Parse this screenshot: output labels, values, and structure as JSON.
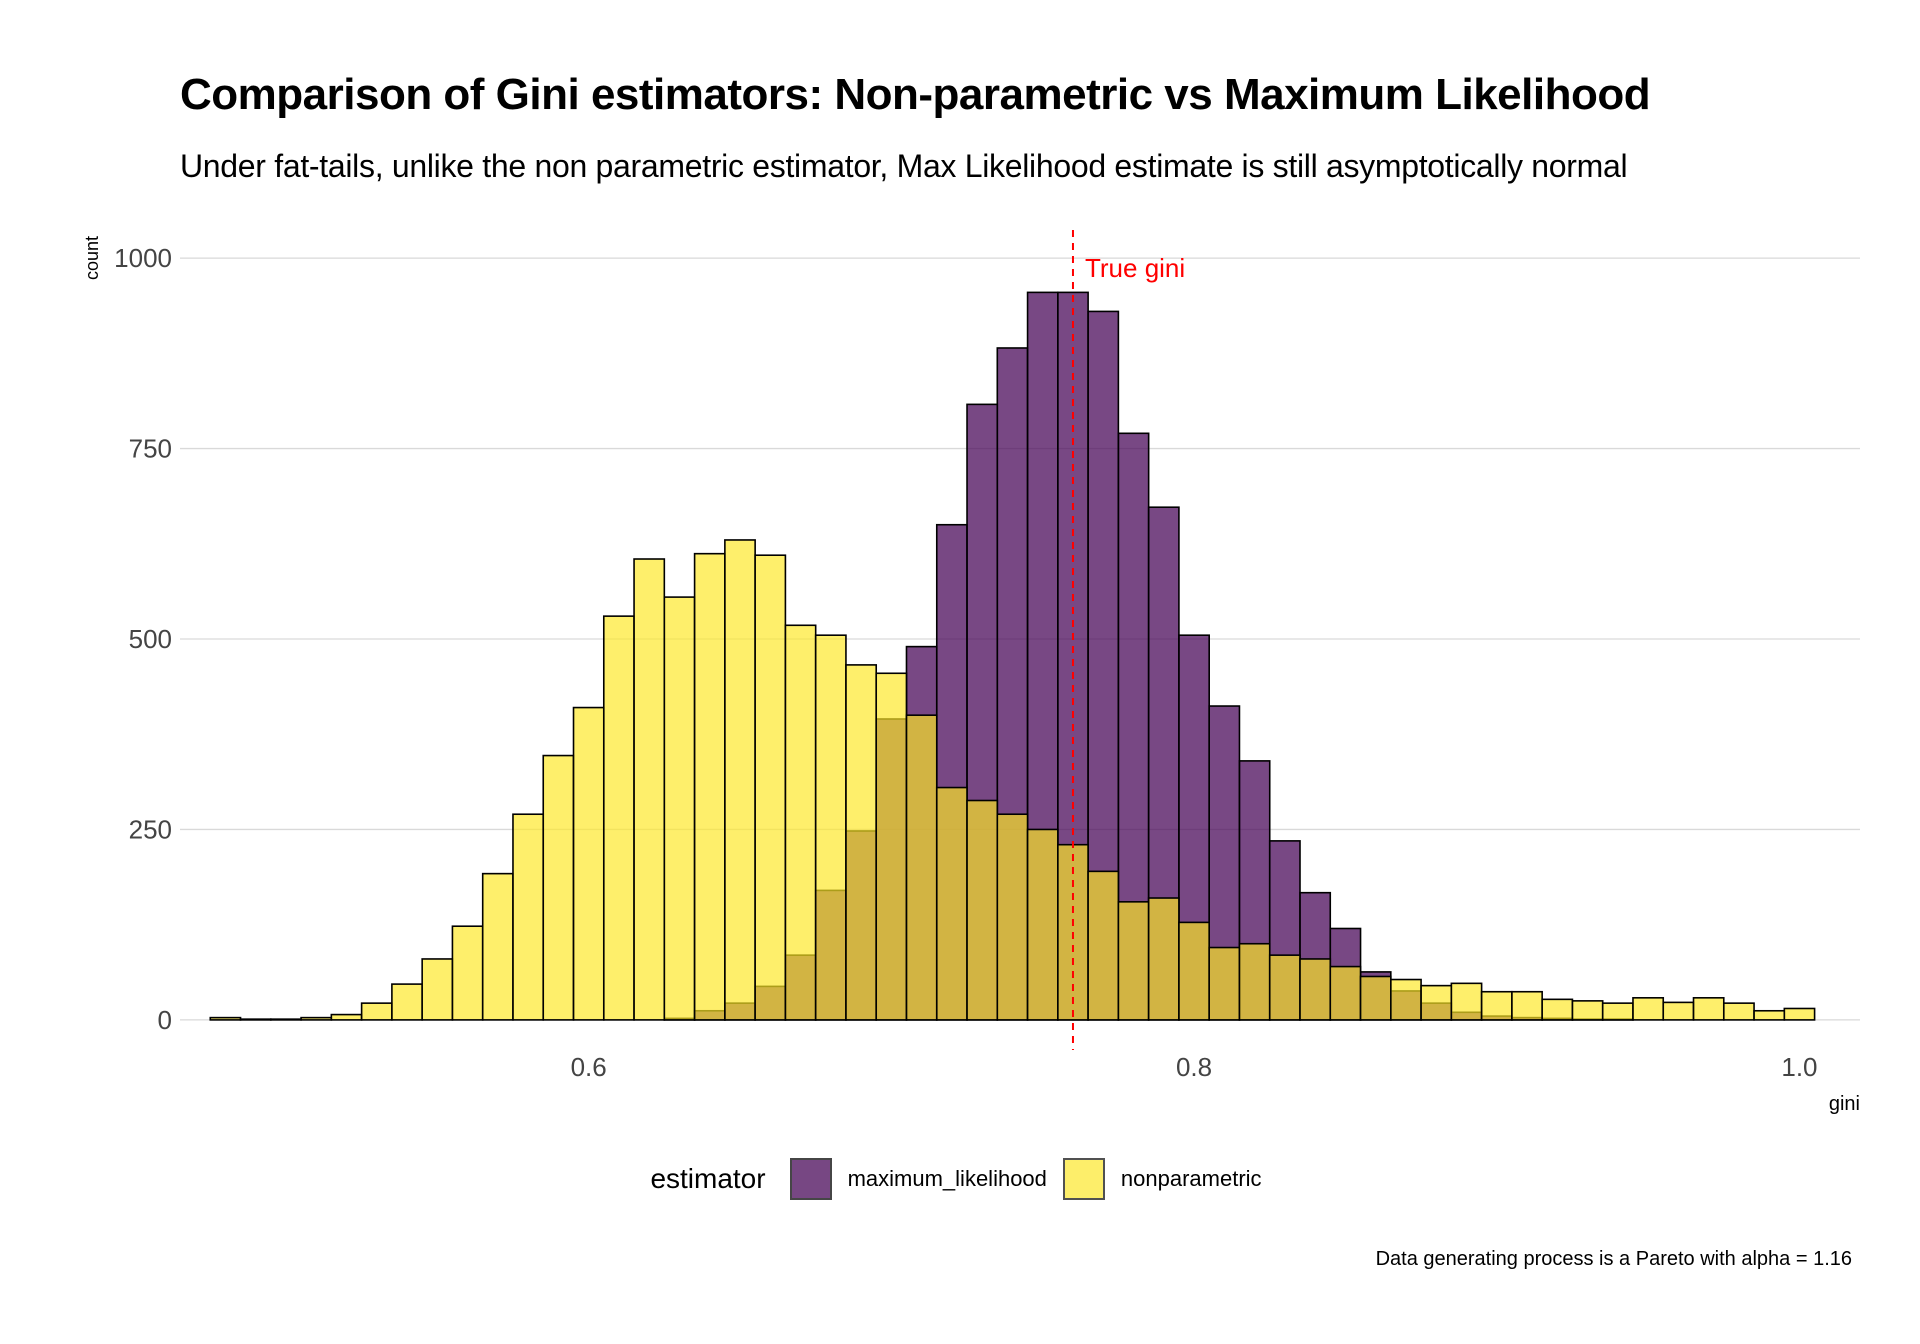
{
  "colors": {
    "maximum_likelihood": "#440154",
    "nonparametric": "#FDE725",
    "reference_line": "#ff0000"
  },
  "chart_data": {
    "type": "bar",
    "title": "Comparison of Gini estimators: Non-parametric vs Maximum Likelihood",
    "subtitle": "Under fat-tails, unlike the non parametric estimator, Max Likelihood estimate is still asymptotically normal",
    "caption": "Data generating process is a Pareto with alpha = 1.16",
    "xlabel": "gini",
    "ylabel": "count",
    "xlim": [
      0.465,
      1.02
    ],
    "ylim": [
      -50,
      1050
    ],
    "x_ticks": [
      {
        "value": 0.6,
        "label": "0.6"
      },
      {
        "value": 0.8,
        "label": "0.8"
      },
      {
        "value": 1.0,
        "label": "1.0"
      }
    ],
    "y_ticks": [
      {
        "value": 0,
        "label": "0"
      },
      {
        "value": 250,
        "label": "250"
      },
      {
        "value": 500,
        "label": "500"
      },
      {
        "value": 750,
        "label": "750"
      },
      {
        "value": 1000,
        "label": "1000"
      }
    ],
    "grid": "horizontal",
    "legend": {
      "position": "bottom",
      "title": "estimator"
    },
    "bin_width": 0.01,
    "bin_centers": [
      0.48,
      0.49,
      0.5,
      0.51,
      0.52,
      0.53,
      0.54,
      0.55,
      0.56,
      0.57,
      0.58,
      0.59,
      0.6,
      0.61,
      0.62,
      0.63,
      0.64,
      0.65,
      0.66,
      0.67,
      0.68,
      0.69,
      0.7,
      0.71,
      0.72,
      0.73,
      0.74,
      0.75,
      0.76,
      0.77,
      0.78,
      0.79,
      0.8,
      0.81,
      0.82,
      0.83,
      0.84,
      0.85,
      0.86,
      0.87,
      0.88,
      0.89,
      0.9,
      0.91,
      0.92,
      0.93,
      0.94,
      0.95,
      0.96,
      0.97,
      0.98,
      0.99,
      1.0
    ],
    "series": [
      {
        "name": "maximum_likelihood",
        "values": [
          0,
          0,
          0,
          0,
          0,
          0,
          0,
          0,
          0,
          0,
          0,
          0,
          0,
          0,
          0,
          2,
          12,
          22,
          44,
          85,
          170,
          248,
          395,
          490,
          650,
          808,
          882,
          955,
          955,
          930,
          770,
          673,
          505,
          412,
          340,
          235,
          167,
          120,
          63,
          38,
          22,
          10,
          5,
          3,
          2,
          1,
          1,
          0,
          0,
          0,
          0,
          0,
          0
        ]
      },
      {
        "name": "nonparametric",
        "values": [
          3,
          1,
          1,
          3,
          7,
          22,
          47,
          80,
          123,
          192,
          270,
          347,
          410,
          530,
          605,
          555,
          612,
          630,
          610,
          518,
          505,
          466,
          455,
          400,
          305,
          288,
          270,
          250,
          230,
          195,
          155,
          160,
          128,
          95,
          100,
          85,
          80,
          70,
          57,
          53,
          45,
          48,
          37,
          37,
          27,
          25,
          22,
          29,
          23,
          29,
          22,
          12,
          15
        ]
      }
    ],
    "annotations": [
      {
        "type": "vline",
        "x": 0.76,
        "label": "True gini"
      }
    ]
  }
}
